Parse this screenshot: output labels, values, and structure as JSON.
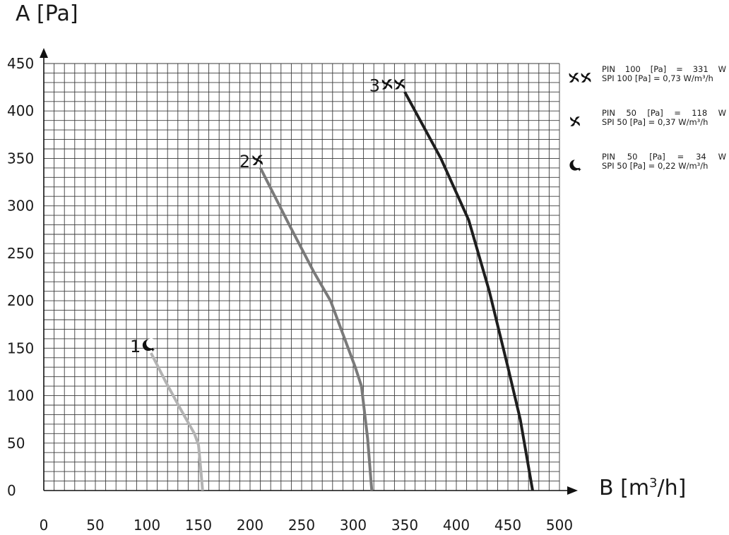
{
  "chart_data": {
    "type": "line",
    "title": "",
    "ylabel": "A [Pa]",
    "xlabel": {
      "prefix": "B [m",
      "sup": "3",
      "suffix": "/h]"
    },
    "xlim": [
      0,
      500
    ],
    "ylim": [
      0,
      450
    ],
    "x_ticks": [
      "0",
      "50",
      "100",
      "150",
      "200",
      "250",
      "300",
      "350",
      "400",
      "450",
      "500"
    ],
    "y_ticks": [
      "0",
      "50",
      "100",
      "150",
      "200",
      "250",
      "300",
      "350",
      "400",
      "450"
    ],
    "grid": true,
    "grid_minor_step_x": 10,
    "grid_minor_step_y": 10,
    "legend_position": "right",
    "series": [
      {
        "label": "1",
        "icon": "moon-star-icon",
        "color": "#b3b3b3",
        "x": [
          104,
          118,
          132,
          146,
          150,
          152,
          154
        ],
        "y": [
          145,
          115,
          87,
          60,
          48,
          25,
          0
        ]
      },
      {
        "label": "2",
        "icon": "single-fan-icon",
        "color": "#7a7a7a",
        "x": [
          210,
          238,
          262,
          278,
          290,
          302,
          308,
          314,
          318
        ],
        "y": [
          340,
          280,
          230,
          200,
          165,
          130,
          110,
          55,
          0
        ]
      },
      {
        "label": "3",
        "icon": "double-fan-icon",
        "color": "#1e1e1e",
        "x": [
          350,
          385,
          412,
          432,
          450,
          462,
          474
        ],
        "y": [
          420,
          350,
          285,
          210,
          130,
          75,
          0
        ]
      }
    ],
    "legend": [
      {
        "icon": "double-fan-icon",
        "pin_label": "PIN",
        "pin_pressure": "100",
        "pin_unit": "[Pa]",
        "equals": "=",
        "pin_value": "331",
        "pin_value_unit": "W",
        "spi": "SPI 100 [Pa] = 0,73 W/m³/h"
      },
      {
        "icon": "single-fan-icon",
        "pin_label": "PIN",
        "pin_pressure": "50",
        "pin_unit": "[Pa]",
        "equals": "=",
        "pin_value": "118",
        "pin_value_unit": "W",
        "spi": "SPI 50 [Pa] = 0,37 W/m³/h"
      },
      {
        "icon": "moon-star-icon",
        "pin_label": "PIN",
        "pin_pressure": "50",
        "pin_unit": "[Pa]",
        "equals": "=",
        "pin_value": "34",
        "pin_value_unit": "W",
        "spi": "SPI 50 [Pa] = 0,22 W/m³/h"
      }
    ]
  }
}
